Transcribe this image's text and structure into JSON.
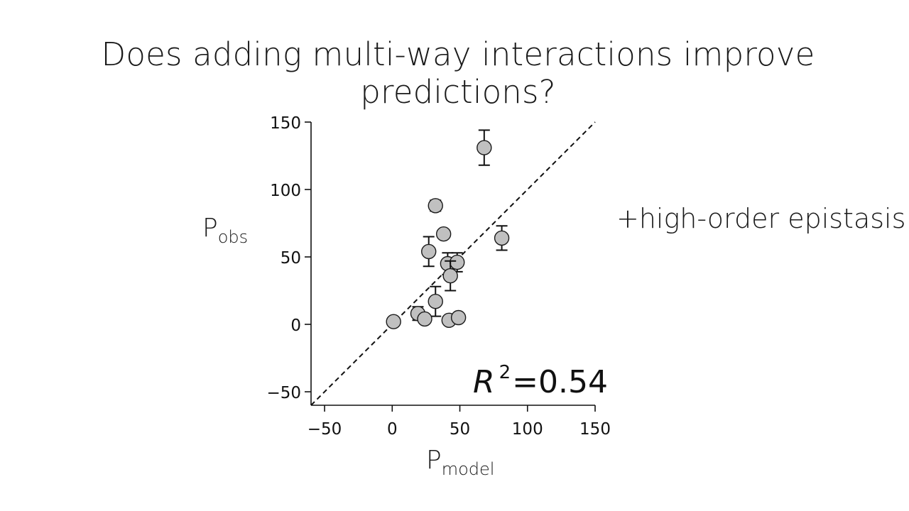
{
  "slide": {
    "title": "Does adding multi-way interactions improve predictions?",
    "side_label": "+high-order epistasis"
  },
  "chart_data": {
    "type": "scatter",
    "title": "",
    "xlabel": {
      "base": "P",
      "sub": "model"
    },
    "ylabel": {
      "base": "P",
      "sub": "obs"
    },
    "xlim": [
      -60,
      150
    ],
    "ylim": [
      -60,
      150
    ],
    "xticks": [
      -50,
      0,
      50,
      100,
      150
    ],
    "yticks": [
      -50,
      0,
      50,
      100,
      150
    ],
    "tick_labels_x": [
      "−50",
      "0",
      "50",
      "100",
      "150"
    ],
    "tick_labels_y": [
      "−50",
      "0",
      "50",
      "100",
      "150"
    ],
    "reference_line": {
      "style": "dashed",
      "from": [
        -60,
        -60
      ],
      "to": [
        150,
        150
      ]
    },
    "annotation": {
      "r2_symbol": "R",
      "r2_sup": "2",
      "r2_text": "=0.54"
    },
    "grid": false,
    "marker_fill": "#c0c0c0",
    "marker_edge": "#1a1a1a",
    "points": [
      {
        "x": 68,
        "y": 131,
        "err": 13
      },
      {
        "x": 32,
        "y": 88,
        "err": 4
      },
      {
        "x": 38,
        "y": 67,
        "err": 0
      },
      {
        "x": 81,
        "y": 64,
        "err": 9
      },
      {
        "x": 27,
        "y": 54,
        "err": 11
      },
      {
        "x": 41,
        "y": 45,
        "err": 8
      },
      {
        "x": 48,
        "y": 46,
        "err": 7
      },
      {
        "x": 43,
        "y": 36,
        "err": 11
      },
      {
        "x": 32,
        "y": 17,
        "err": 11
      },
      {
        "x": 19,
        "y": 8,
        "err": 5
      },
      {
        "x": 24,
        "y": 4,
        "err": 0
      },
      {
        "x": 42,
        "y": 3,
        "err": 0
      },
      {
        "x": 49,
        "y": 5,
        "err": 0
      },
      {
        "x": 1,
        "y": 2,
        "err": 3
      }
    ]
  }
}
